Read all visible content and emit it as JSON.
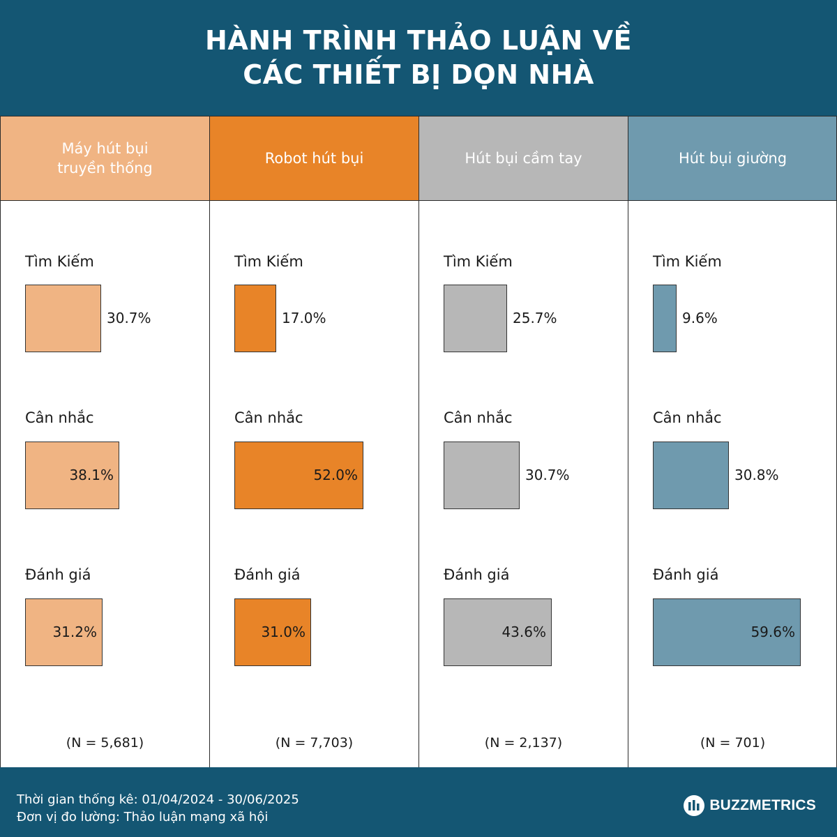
{
  "title": {
    "line1": "HÀNH TRÌNH THẢO LUẬN VỀ",
    "line2": "CÁC THIẾT BỊ DỌN NHÀ"
  },
  "chart_data": {
    "type": "bar",
    "title": "HÀNH TRÌNH THẢO LUẬN VỀ CÁC THIẾT BỊ DỌN NHÀ",
    "stages": [
      "Tìm Kiếm",
      "Cân nhắc",
      "Đánh giá"
    ],
    "unit": "%",
    "series": [
      {
        "name": "Máy hút bụi truyền thống",
        "header_lines": [
          "Máy hút bụi",
          "truyền thống"
        ],
        "color": "#F0B483",
        "values": [
          30.7,
          38.1,
          31.2
        ],
        "labels": [
          "30.7%",
          "38.1%",
          "31.2%"
        ],
        "n_label": "(N = 5,681)"
      },
      {
        "name": "Robot hút bụi",
        "header_lines": [
          "Robot hút bụi"
        ],
        "color": "#E88428",
        "values": [
          17.0,
          52.0,
          31.0
        ],
        "labels": [
          "17.0%",
          "52.0%",
          "31.0%"
        ],
        "n_label": "(N = 7,703)"
      },
      {
        "name": "Hút bụi cầm tay",
        "header_lines": [
          "Hút bụi cầm tay"
        ],
        "color": "#B7B7B7",
        "values": [
          25.7,
          30.7,
          43.6
        ],
        "labels": [
          "25.7%",
          "30.7%",
          "43.6%"
        ],
        "n_label": "(N = 2,137)"
      },
      {
        "name": "Hút bụi giường",
        "header_lines": [
          "Hút bụi giường"
        ],
        "color": "#6F9AAE",
        "values": [
          9.6,
          30.8,
          59.6
        ],
        "labels": [
          "9.6%",
          "30.8%",
          "59.6%"
        ],
        "n_label": "(N = 701)"
      }
    ]
  },
  "footer": {
    "period": "Thời gian thống kê: 01/04/2024 - 30/06/2025",
    "unit": "Đơn vị đo lường: Thảo luận mạng xã hội",
    "brand": "BUZZMETRICS"
  },
  "colors": {
    "header_bg": "#145673",
    "footer_bg": "#145673"
  }
}
